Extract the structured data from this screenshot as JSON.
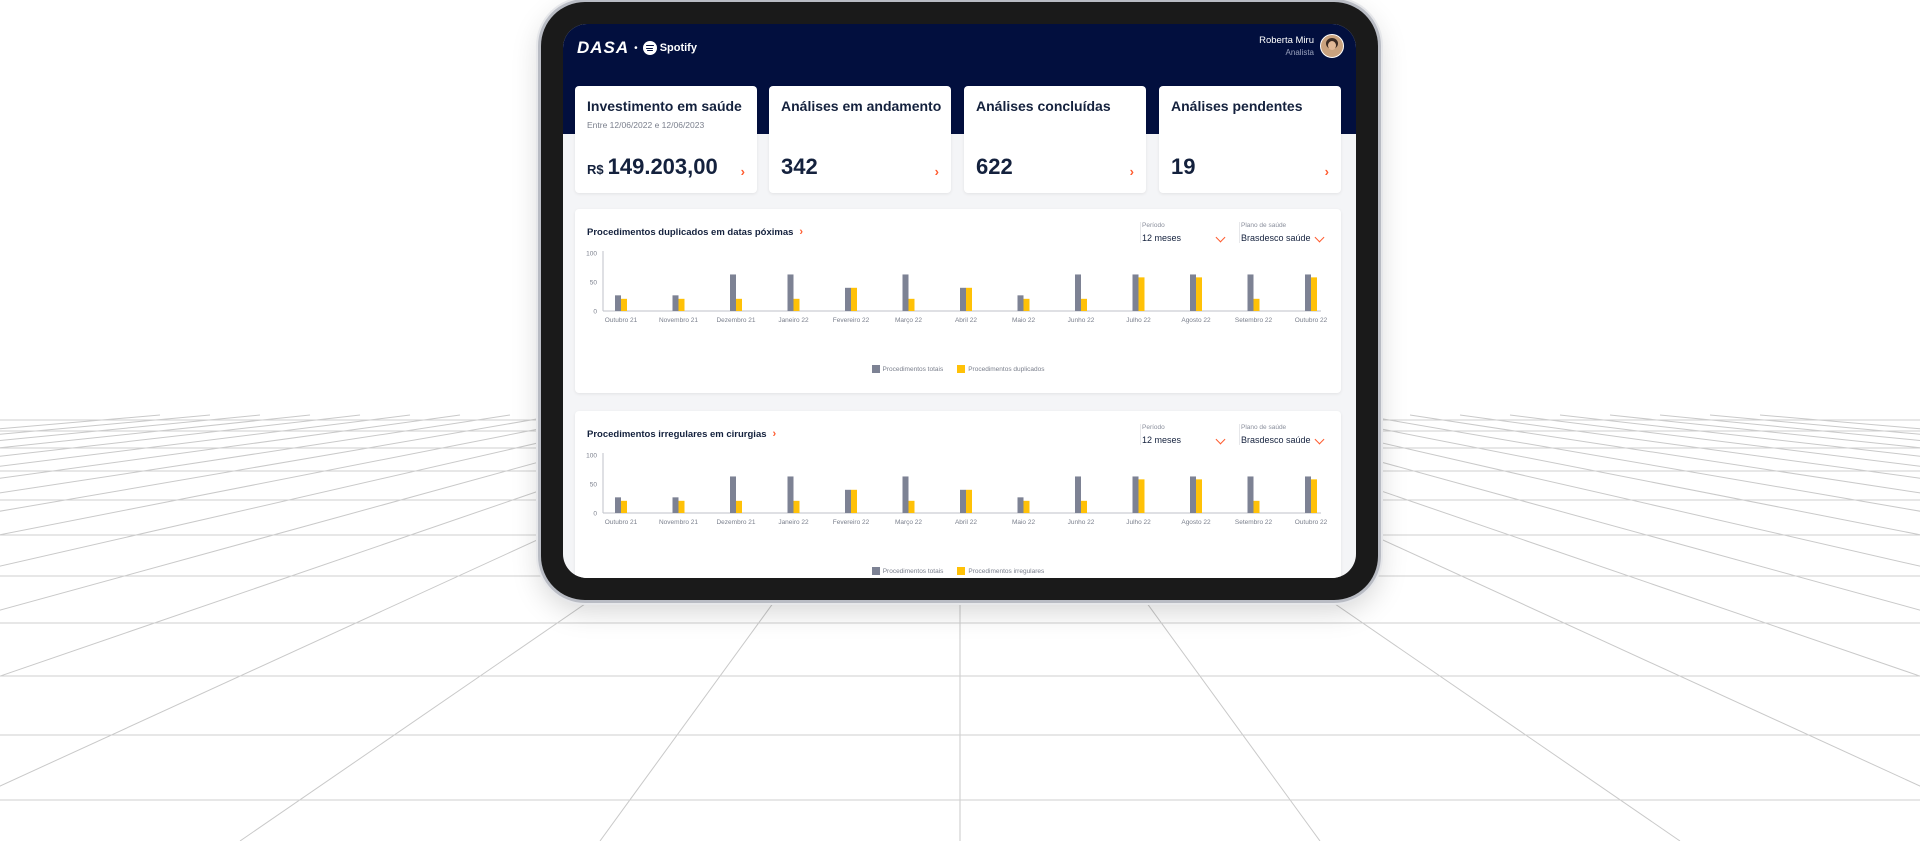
{
  "colors": {
    "navy": "#020f3e",
    "accent": "#ff5b2e",
    "series_total": "#7d8294",
    "series_secondary": "#ffc107"
  },
  "header": {
    "logo_dasa": "DASA",
    "logo_separator": "•",
    "logo_spotify": "Spotify",
    "user_name": "Roberta Miru",
    "user_role": "Analista"
  },
  "kpis": [
    {
      "title": "Investimento em saúde",
      "subtitle": "Entre 12/06/2022 e 12/06/2023",
      "currency": "R$",
      "value": "149.203,00"
    },
    {
      "title": "Análises em andamento",
      "value": "342"
    },
    {
      "title": "Análises concluídas",
      "value": "622"
    },
    {
      "title": "Análises pendentes",
      "value": "19"
    }
  ],
  "filters": {
    "period_label": "Período",
    "period_value": "12 meses",
    "plan_label": "Plano de saúde",
    "plan_value": "Brasdesco saúde"
  },
  "chart_data": [
    {
      "type": "bar",
      "title": "Procedimentos duplicados em datas póximas",
      "categories": [
        "Outubro 21",
        "Novembro 21",
        "Dezembro 21",
        "Janeiro 22",
        "Fevereiro 22",
        "Março 22",
        "Abril 22",
        "Maio 22",
        "Junho 22",
        "Julho 22",
        "Agosto 22",
        "Setembro 22",
        "Outubro 22"
      ],
      "yticks": [
        "100",
        "50",
        "0"
      ],
      "ylim": [
        0,
        100
      ],
      "series": [
        {
          "name": "Procedimentos totais",
          "values": [
            27,
            27,
            63,
            63,
            40,
            63,
            40,
            27,
            63,
            63,
            63,
            63,
            63
          ]
        },
        {
          "name": "Procedimentos duplicados",
          "values": [
            21,
            21,
            21,
            21,
            40,
            21,
            40,
            21,
            21,
            58,
            58,
            21,
            58
          ]
        }
      ],
      "legend": "bottom-center"
    },
    {
      "type": "bar",
      "title": "Procedimentos irregulares em cirurgias",
      "categories": [
        "Outubro 21",
        "Novembro 21",
        "Dezembro 21",
        "Janeiro 22",
        "Fevereiro 22",
        "Março 22",
        "Abril 22",
        "Maio 22",
        "Junho 22",
        "Julho 22",
        "Agosto 22",
        "Setembro 22",
        "Outubro 22"
      ],
      "yticks": [
        "100",
        "50",
        "0"
      ],
      "ylim": [
        0,
        100
      ],
      "series": [
        {
          "name": "Procedimentos totais",
          "values": [
            27,
            27,
            63,
            63,
            40,
            63,
            40,
            27,
            63,
            63,
            63,
            63,
            63
          ]
        },
        {
          "name": "Procedimentos irregulares",
          "values": [
            21,
            21,
            21,
            21,
            40,
            21,
            40,
            21,
            21,
            58,
            58,
            21,
            58
          ]
        }
      ],
      "legend": "bottom-center"
    }
  ]
}
